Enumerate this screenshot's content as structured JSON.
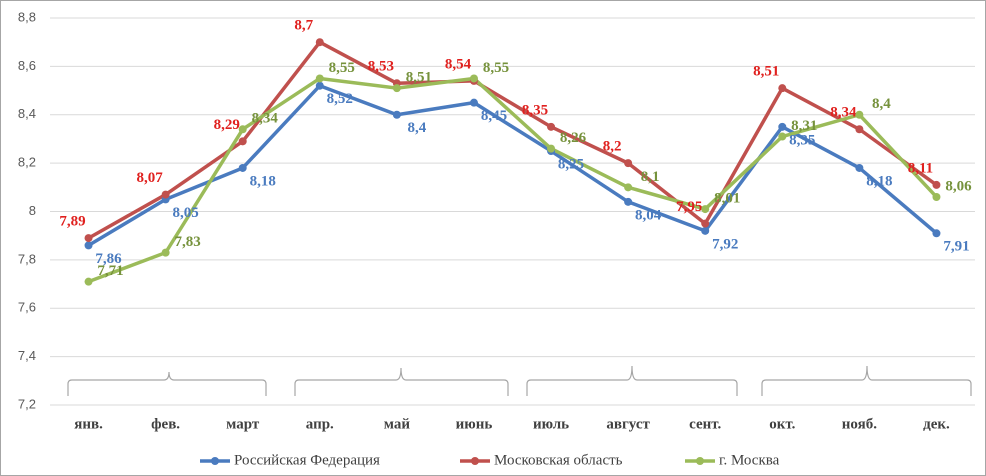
{
  "chart_data": {
    "type": "line",
    "categories": [
      "янв.",
      "фев.",
      "март",
      "апр.",
      "май",
      "июнь",
      "июль",
      "август",
      "сент.",
      "окт.",
      "нояб.",
      "дек."
    ],
    "series": [
      {
        "name": "Российская Федерация",
        "color": "#4a7bbf",
        "label_color": "#4a7bbf",
        "values": [
          7.86,
          8.05,
          8.18,
          8.52,
          8.4,
          8.45,
          8.25,
          8.04,
          7.92,
          8.35,
          8.18,
          7.91
        ],
        "value_labels": [
          "7,86",
          "8,05",
          "8,18",
          "8,52",
          "8,4",
          "8,45",
          "8,25",
          "8,04",
          "7,92",
          "8,35",
          "8,18",
          "7,91"
        ]
      },
      {
        "name": "Московская область",
        "color": "#c0504d",
        "label_color": "#e0201e",
        "values": [
          7.89,
          8.07,
          8.29,
          8.7,
          8.53,
          8.54,
          8.35,
          8.2,
          7.95,
          8.51,
          8.34,
          8.11
        ],
        "value_labels": [
          "7,89",
          "8,07",
          "8,29",
          "8,7",
          "8,53",
          "8,54",
          "8,35",
          "8,2",
          "7,95",
          "8,51",
          "8,34",
          "8,11"
        ]
      },
      {
        "name": "г. Москва",
        "color": "#9bbb59",
        "label_color": "#76923c",
        "values": [
          7.71,
          7.83,
          8.34,
          8.55,
          8.51,
          8.55,
          8.26,
          8.1,
          8.01,
          8.31,
          8.4,
          8.06
        ],
        "value_labels": [
          "7,71",
          "7,83",
          "8,34",
          "8,55",
          "8,51",
          "8,55",
          "8,26",
          "8,1",
          "8,01",
          "8,31",
          "8,4",
          "8,06"
        ]
      }
    ],
    "ylim": [
      7.2,
      8.8
    ],
    "yticks": [
      {
        "value": 7.2,
        "label": "7,2"
      },
      {
        "value": 7.4,
        "label": "7,4"
      },
      {
        "value": 7.6,
        "label": "7,6"
      },
      {
        "value": 7.8,
        "label": "7,8"
      },
      8,
      {
        "value": 8.2,
        "label": "8,2"
      },
      {
        "value": 8.4,
        "label": "8,4"
      },
      {
        "value": 8.6,
        "label": "8,6"
      },
      {
        "value": 8.8,
        "label": "8,8"
      }
    ],
    "grid": true,
    "legend": "bottom"
  }
}
